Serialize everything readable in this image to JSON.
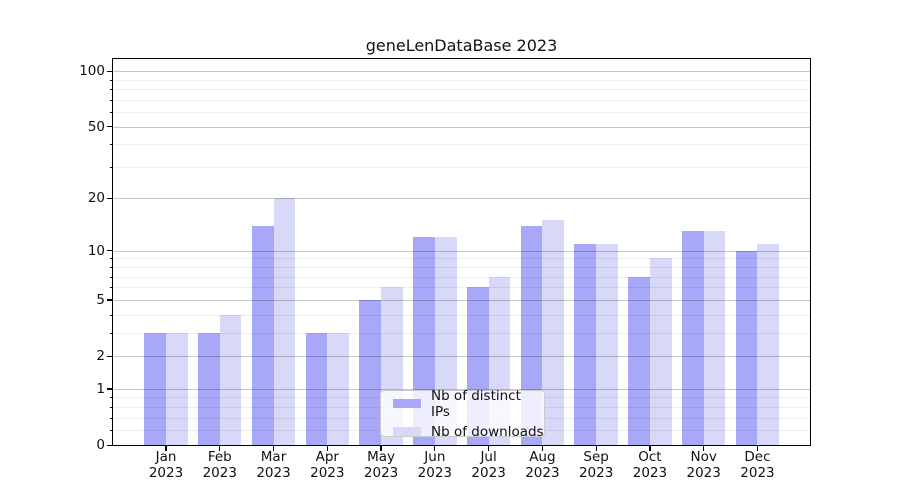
{
  "title": "geneLenDataBase 2023",
  "chart_data": {
    "type": "bar",
    "title": "geneLenDataBase 2023",
    "categories": [
      "Jan",
      "Feb",
      "Mar",
      "Apr",
      "May",
      "Jun",
      "Jul",
      "Aug",
      "Sep",
      "Oct",
      "Nov",
      "Dec"
    ],
    "year": "2023",
    "series": [
      {
        "name": "Nb of distinct IPs",
        "color": "#a8a8f8",
        "values": [
          3,
          3,
          14,
          3,
          5,
          12,
          6,
          14,
          11,
          7,
          13,
          10
        ]
      },
      {
        "name": "Nb of downloads",
        "color": "#d8d8f8",
        "values": [
          3,
          4,
          20,
          3,
          6,
          12,
          7,
          15,
          11,
          9,
          13,
          11
        ]
      }
    ],
    "y_scale": "log1p",
    "y_major_ticks": [
      0,
      1,
      2,
      5,
      10,
      20,
      50,
      100
    ],
    "y_minor_ticks": [
      0.2,
      0.4,
      0.6,
      0.8,
      3,
      4,
      6,
      7,
      8,
      9,
      30,
      40,
      60,
      70,
      80,
      90
    ],
    "ylim": [
      0,
      117
    ],
    "xlabel": "",
    "ylabel": "",
    "grid": "horizontal-major-and-minor",
    "legend_position": "lower center",
    "colors": {
      "major_grid": "#c6c6c6",
      "minor_grid": "#ededed",
      "axis": "#000000",
      "background": "#ffffff"
    }
  }
}
